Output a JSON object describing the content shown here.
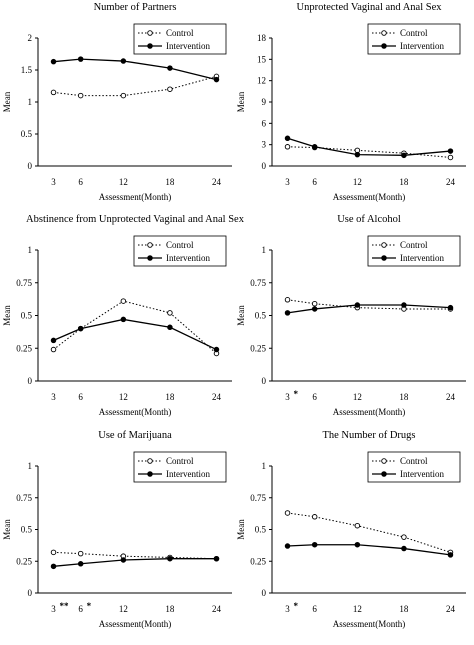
{
  "figure": {
    "legend_labels": {
      "control": "Control",
      "intervention": "Intervention"
    }
  },
  "chart_data": [
    {
      "type": "line",
      "title": "Number of Partners",
      "xlabel": "Assessment(Month)",
      "ylabel": "Mean",
      "categories": [
        "3",
        "6",
        "12",
        "18",
        "24"
      ],
      "ylim": [
        0,
        2
      ],
      "yticks": [
        "0",
        "0.5",
        "1",
        "1.5",
        "2"
      ],
      "legend_position": "top-right",
      "series": [
        {
          "name": "Control",
          "style": "dotted",
          "marker": "open-circle",
          "values": [
            1.15,
            1.1,
            1.1,
            1.2,
            1.4
          ]
        },
        {
          "name": "Intervention",
          "style": "solid",
          "marker": "filled-circle",
          "values": [
            1.63,
            1.67,
            1.64,
            1.53,
            1.35
          ]
        }
      ],
      "tick_annotations": [
        "",
        "",
        "",
        "",
        ""
      ]
    },
    {
      "type": "line",
      "title": "Unprotected Vaginal and Anal Sex",
      "xlabel": "Assessment(Month)",
      "ylabel": "Mean",
      "categories": [
        "3",
        "6",
        "12",
        "18",
        "24"
      ],
      "ylim": [
        0,
        18
      ],
      "yticks": [
        "0",
        "3",
        "6",
        "9",
        "12",
        "15",
        "18"
      ],
      "legend_position": "top-right",
      "series": [
        {
          "name": "Control",
          "style": "dotted",
          "marker": "open-circle",
          "values": [
            2.7,
            2.6,
            2.2,
            1.8,
            1.2
          ]
        },
        {
          "name": "Intervention",
          "style": "solid",
          "marker": "filled-circle",
          "values": [
            3.9,
            2.7,
            1.6,
            1.5,
            2.1
          ]
        }
      ],
      "tick_annotations": [
        "",
        "",
        "",
        "",
        ""
      ]
    },
    {
      "type": "line",
      "title": "Abstinence from Unprotected Vaginal and Anal Sex",
      "xlabel": "Assessment(Month)",
      "ylabel": "Mean",
      "categories": [
        "3",
        "6",
        "12",
        "18",
        "24"
      ],
      "ylim": [
        0,
        1
      ],
      "yticks": [
        "0",
        "0.25",
        "0.5",
        "0.75",
        "1"
      ],
      "legend_position": "top-right",
      "series": [
        {
          "name": "Control",
          "style": "dotted",
          "marker": "open-circle",
          "values": [
            0.24,
            0.4,
            0.61,
            0.52,
            0.21
          ]
        },
        {
          "name": "Intervention",
          "style": "solid",
          "marker": "filled-circle",
          "values": [
            0.31,
            0.4,
            0.47,
            0.41,
            0.24
          ]
        }
      ],
      "tick_annotations": [
        "",
        "",
        "",
        "",
        ""
      ]
    },
    {
      "type": "line",
      "title": "Use of Alcohol",
      "xlabel": "Assessment(Month)",
      "ylabel": "Mean",
      "categories": [
        "3",
        "6",
        "12",
        "18",
        "24"
      ],
      "ylim": [
        0,
        1
      ],
      "yticks": [
        "0",
        "0.25",
        "0.5",
        "0.75",
        "1"
      ],
      "legend_position": "top-right",
      "series": [
        {
          "name": "Control",
          "style": "dotted",
          "marker": "open-circle",
          "values": [
            0.62,
            0.59,
            0.56,
            0.55,
            0.55
          ]
        },
        {
          "name": "Intervention",
          "style": "solid",
          "marker": "filled-circle",
          "values": [
            0.52,
            0.55,
            0.58,
            0.58,
            0.56
          ]
        }
      ],
      "tick_annotations": [
        "*",
        "",
        "",
        "",
        ""
      ]
    },
    {
      "type": "line",
      "title": "Use of Marijuana",
      "xlabel": "Assessment(Month)",
      "ylabel": "Mean",
      "categories": [
        "3",
        "6",
        "12",
        "18",
        "24"
      ],
      "ylim": [
        0,
        1
      ],
      "yticks": [
        "0",
        "0.25",
        "0.5",
        "0.75",
        "1"
      ],
      "legend_position": "top-right",
      "series": [
        {
          "name": "Control",
          "style": "dotted",
          "marker": "open-circle",
          "values": [
            0.32,
            0.31,
            0.29,
            0.28,
            0.27
          ]
        },
        {
          "name": "Intervention",
          "style": "solid",
          "marker": "filled-circle",
          "values": [
            0.21,
            0.23,
            0.26,
            0.27,
            0.27
          ]
        }
      ],
      "tick_annotations": [
        "**",
        "*",
        "",
        "",
        ""
      ]
    },
    {
      "type": "line",
      "title": "The Number of Drugs",
      "xlabel": "Assessment(Month)",
      "ylabel": "Mean",
      "categories": [
        "3",
        "6",
        "12",
        "18",
        "24"
      ],
      "ylim": [
        0,
        1
      ],
      "yticks": [
        "0",
        "0.25",
        "0.5",
        "0.75",
        "1"
      ],
      "legend_position": "top-right",
      "series": [
        {
          "name": "Control",
          "style": "dotted",
          "marker": "open-circle",
          "values": [
            0.63,
            0.6,
            0.53,
            0.44,
            0.32
          ]
        },
        {
          "name": "Intervention",
          "style": "solid",
          "marker": "filled-circle",
          "values": [
            0.37,
            0.38,
            0.38,
            0.35,
            0.3
          ]
        }
      ],
      "tick_annotations": [
        "*",
        "",
        "",
        "",
        ""
      ]
    }
  ]
}
